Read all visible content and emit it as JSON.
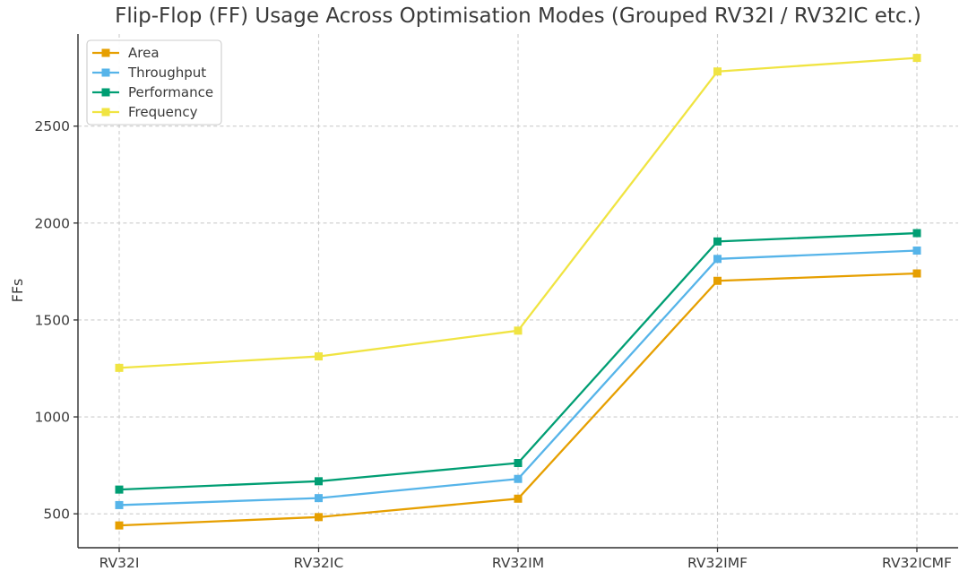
{
  "chart_data": {
    "type": "line",
    "title": "Flip-Flop (FF) Usage Across Optimisation Modes (Grouped RV32I / RV32IC etc.)",
    "xlabel": "",
    "ylabel": "FFs",
    "categories": [
      "RV32I",
      "RV32IC",
      "RV32IM",
      "RV32IMF",
      "RV32ICMF"
    ],
    "series": [
      {
        "name": "Area",
        "color": "#E69F00",
        "values": [
          440,
          483,
          578,
          1702,
          1740
        ]
      },
      {
        "name": "Throughput",
        "color": "#56B4E9",
        "values": [
          545,
          581,
          680,
          1815,
          1858
        ]
      },
      {
        "name": "Performance",
        "color": "#009E73",
        "values": [
          625,
          668,
          762,
          1905,
          1948
        ]
      },
      {
        "name": "Frequency",
        "color": "#F0E442",
        "values": [
          1253,
          1312,
          1445,
          2782,
          2852
        ]
      }
    ],
    "yticks": [
      500,
      1000,
      1500,
      2000,
      2500
    ],
    "ylim": [
      325,
      2975
    ],
    "marker": "square",
    "grid": "dashed, both axes",
    "legend_position": "upper-left",
    "legend_entries": [
      "Area",
      "Throughput",
      "Performance",
      "Frequency"
    ],
    "style": {
      "background": "#ffffff",
      "grid_color": "#cccccc",
      "spine_color": "#2e2e2e",
      "tick_color": "#2e2e2e",
      "text_color": "#3a3a3a",
      "legend_border": "#cccccc",
      "legend_fill": "#ffffff"
    }
  }
}
